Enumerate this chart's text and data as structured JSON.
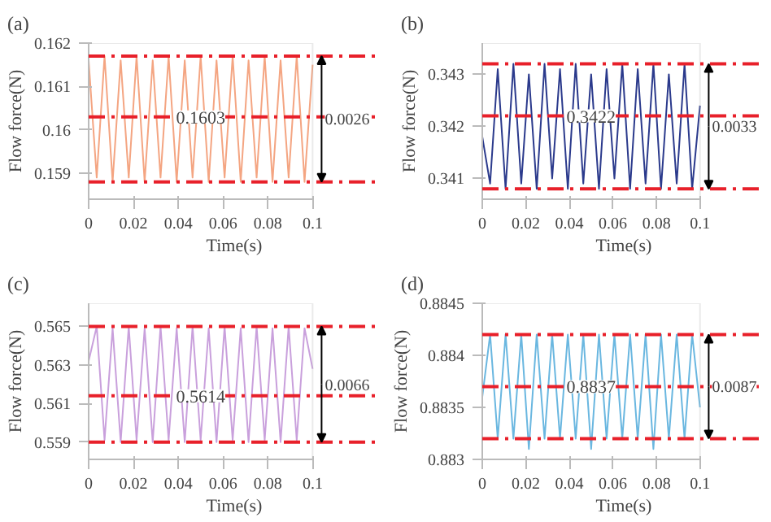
{
  "chart_data": [
    {
      "type": "line",
      "title": "(a)",
      "xlabel": "Time(s)",
      "ylabel": "Flow force(N)",
      "x": [
        0,
        0.0036,
        0.0071,
        0.0107,
        0.0143,
        0.0179,
        0.0214,
        0.025,
        0.0286,
        0.0321,
        0.0357,
        0.0393,
        0.0429,
        0.0464,
        0.05,
        0.0536,
        0.0571,
        0.0607,
        0.0643,
        0.0679,
        0.0714,
        0.075,
        0.0786,
        0.0821,
        0.0857,
        0.0893,
        0.0929,
        0.0964,
        0.1
      ],
      "series": [
        {
          "color": "#f4a582",
          "values": [
            0.1616,
            0.1589,
            0.1617,
            0.1588,
            0.1616,
            0.1589,
            0.1617,
            0.1588,
            0.1616,
            0.1589,
            0.1617,
            0.1588,
            0.1616,
            0.1589,
            0.1617,
            0.1588,
            0.1616,
            0.1589,
            0.1617,
            0.1588,
            0.1616,
            0.1589,
            0.1617,
            0.1588,
            0.1616,
            0.1589,
            0.1617,
            0.1588,
            0.1615
          ]
        }
      ],
      "xlim": [
        0,
        0.1
      ],
      "ylim": [
        0.1584,
        0.162
      ],
      "xticks": [
        0,
        0.02,
        0.04,
        0.06,
        0.08,
        0.1
      ],
      "yticks": [
        0.159,
        0.16,
        0.161,
        0.162
      ],
      "ref_lines": [
        {
          "axis": "y",
          "value": 0.1617,
          "color": "#e8202a",
          "line_style": "dashed"
        },
        {
          "axis": "y",
          "value": 0.1603,
          "label": "0.1603",
          "color": "#e8202a",
          "line_style": "dashed"
        },
        {
          "axis": "y",
          "value": 0.1588,
          "color": "#e8202a",
          "line_style": "dashed"
        }
      ],
      "annotations": [
        "0.0026"
      ]
    },
    {
      "type": "line",
      "title": "(b)",
      "xlabel": "Time(s)",
      "ylabel": "Flow force(N)",
      "x": [
        0,
        0.0036,
        0.0071,
        0.0107,
        0.0143,
        0.0179,
        0.0214,
        0.025,
        0.0286,
        0.0321,
        0.0357,
        0.0393,
        0.0429,
        0.0464,
        0.05,
        0.0536,
        0.0571,
        0.0607,
        0.0643,
        0.0679,
        0.0714,
        0.075,
        0.0786,
        0.0821,
        0.0857,
        0.0893,
        0.0929,
        0.0964,
        0.1
      ],
      "series": [
        {
          "color": "#2b3a8c",
          "values": [
            0.3418,
            0.3409,
            0.3431,
            0.3408,
            0.3432,
            0.3409,
            0.343,
            0.3408,
            0.3432,
            0.341,
            0.3431,
            0.3408,
            0.3432,
            0.3409,
            0.343,
            0.3408,
            0.3431,
            0.341,
            0.3432,
            0.3408,
            0.3431,
            0.3409,
            0.3432,
            0.3408,
            0.343,
            0.3409,
            0.3432,
            0.3408,
            0.3424
          ]
        }
      ],
      "xlim": [
        0,
        0.1
      ],
      "ylim": [
        0.3406,
        0.3436
      ],
      "xticks": [
        0,
        0.02,
        0.04,
        0.06,
        0.08,
        0.1
      ],
      "yticks": [
        0.341,
        0.342,
        0.343
      ],
      "ref_lines": [
        {
          "axis": "y",
          "value": 0.3432,
          "color": "#e8202a",
          "line_style": "dashed"
        },
        {
          "axis": "y",
          "value": 0.3422,
          "label": "0.3422",
          "color": "#e8202a",
          "line_style": "dashed"
        },
        {
          "axis": "y",
          "value": 0.3408,
          "color": "#e8202a",
          "line_style": "dashed"
        }
      ],
      "annotations": [
        "0.0033"
      ]
    },
    {
      "type": "line",
      "title": "(c)",
      "xlabel": "Time(s)",
      "ylabel": "Flow force(N)",
      "x": [
        0,
        0.0036,
        0.0071,
        0.0107,
        0.0143,
        0.0179,
        0.0214,
        0.025,
        0.0286,
        0.0321,
        0.0357,
        0.0393,
        0.0429,
        0.0464,
        0.05,
        0.0536,
        0.0571,
        0.0607,
        0.0643,
        0.0679,
        0.0714,
        0.075,
        0.0786,
        0.0821,
        0.0857,
        0.0893,
        0.0929,
        0.0964,
        0.1
      ],
      "series": [
        {
          "color": "#c9a0dc",
          "values": [
            0.5632,
            0.565,
            0.5591,
            0.5649,
            0.559,
            0.565,
            0.5591,
            0.5649,
            0.559,
            0.565,
            0.5591,
            0.5649,
            0.559,
            0.565,
            0.5591,
            0.5649,
            0.559,
            0.565,
            0.5591,
            0.5649,
            0.559,
            0.565,
            0.5591,
            0.5649,
            0.559,
            0.565,
            0.5591,
            0.5649,
            0.5628
          ]
        }
      ],
      "xlim": [
        0,
        0.1
      ],
      "ylim": [
        0.5581,
        0.5662
      ],
      "xticks": [
        0,
        0.02,
        0.04,
        0.06,
        0.08,
        0.1
      ],
      "yticks": [
        0.559,
        0.561,
        0.563,
        0.565
      ],
      "ref_lines": [
        {
          "axis": "y",
          "value": 0.565,
          "color": "#e8202a",
          "line_style": "dashed"
        },
        {
          "axis": "y",
          "value": 0.5614,
          "label": "0.5614",
          "color": "#e8202a",
          "line_style": "dashed"
        },
        {
          "axis": "y",
          "value": 0.559,
          "color": "#e8202a",
          "line_style": "dashed"
        }
      ],
      "annotations": [
        "0.0066"
      ]
    },
    {
      "type": "line",
      "title": "(d)",
      "xlabel": "Time(s)",
      "ylabel": "Flow force(N)",
      "x": [
        0,
        0.0036,
        0.0071,
        0.0107,
        0.0143,
        0.0179,
        0.0214,
        0.025,
        0.0286,
        0.0321,
        0.0357,
        0.0393,
        0.0429,
        0.0464,
        0.05,
        0.0536,
        0.0571,
        0.0607,
        0.0643,
        0.0679,
        0.0714,
        0.075,
        0.0786,
        0.0821,
        0.0857,
        0.0893,
        0.0929,
        0.0964,
        0.1
      ],
      "series": [
        {
          "color": "#6ab7e0",
          "values": [
            0.8836,
            0.8842,
            0.8832,
            0.8842,
            0.8832,
            0.8842,
            0.8831,
            0.8842,
            0.8832,
            0.8842,
            0.8832,
            0.8842,
            0.8832,
            0.8842,
            0.8831,
            0.8842,
            0.8832,
            0.8842,
            0.8832,
            0.8842,
            0.8832,
            0.8842,
            0.8831,
            0.8842,
            0.8832,
            0.8842,
            0.8832,
            0.8842,
            0.8835
          ]
        }
      ],
      "xlim": [
        0,
        0.1
      ],
      "ylim": [
        0.883,
        0.8845
      ],
      "xticks": [
        0,
        0.02,
        0.04,
        0.06,
        0.08,
        0.1
      ],
      "yticks": [
        0.883,
        0.8835,
        0.884,
        0.8845
      ],
      "ref_lines": [
        {
          "axis": "y",
          "value": 0.8842,
          "color": "#e8202a",
          "line_style": "dashed"
        },
        {
          "axis": "y",
          "value": 0.8837,
          "label": "0.8837",
          "color": "#e8202a",
          "line_style": "dashed"
        },
        {
          "axis": "y",
          "value": 0.8832,
          "color": "#e8202a",
          "line_style": "dashed"
        }
      ],
      "annotations": [
        "0.0087"
      ]
    }
  ]
}
